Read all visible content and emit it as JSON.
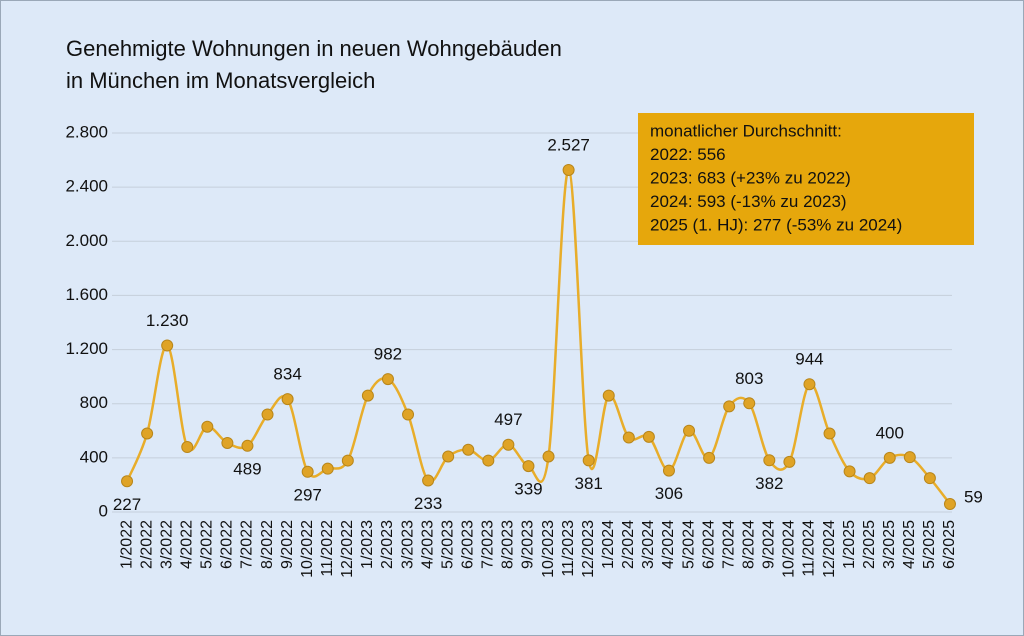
{
  "chart_data": {
    "type": "line",
    "title": [
      "Genehmigte Wohnungen in neuen Wohngebäuden",
      "in München im Monatsvergleich"
    ],
    "annotation": [
      "monatlicher Durchschnitt:",
      "2022: 556",
      "2023: 683 (+23% zu 2022)",
      "2024: 593 (-13% zu 2023)",
      "2025 (1. HJ): 277 (-53% zu 2024)"
    ],
    "categories": [
      "1/2022",
      "2/2022",
      "3/2022",
      "4/2022",
      "5/2022",
      "6/2022",
      "7/2022",
      "8/2022",
      "9/2022",
      "10/2022",
      "11/2022",
      "12/2022",
      "1/2023",
      "2/2023",
      "3/2023",
      "4/2023",
      "5/2023",
      "6/2023",
      "7/2023",
      "8/2023",
      "9/2023",
      "10/2023",
      "11/2023",
      "12/2023",
      "1/2024",
      "2/2024",
      "3/2024",
      "4/2024",
      "5/2024",
      "6/2024",
      "7/2024",
      "8/2024",
      "9/2024",
      "10/2024",
      "11/2024",
      "12/2024",
      "1/2025",
      "2/2025",
      "3/2025",
      "4/2025",
      "5/2025",
      "6/2025"
    ],
    "values": [
      227,
      580,
      1230,
      480,
      630,
      510,
      489,
      720,
      834,
      297,
      320,
      380,
      860,
      982,
      720,
      233,
      410,
      460,
      380,
      497,
      339,
      410,
      2527,
      381,
      860,
      550,
      555,
      306,
      600,
      400,
      780,
      803,
      382,
      370,
      944,
      580,
      300,
      250,
      400,
      405,
      250,
      59
    ],
    "value_labels": [
      "227",
      null,
      "1.230",
      null,
      null,
      null,
      "489",
      null,
      "834",
      "297",
      null,
      null,
      null,
      "982",
      null,
      "233",
      null,
      null,
      null,
      "497",
      "339",
      null,
      "2.527",
      "381",
      null,
      null,
      null,
      "306",
      null,
      null,
      null,
      "803",
      "382",
      null,
      "944",
      null,
      null,
      null,
      "400",
      null,
      null,
      "59"
    ],
    "color": "#e8ad2a",
    "marker_color": "#dfa326",
    "annotation_color": "#e6a70c",
    "ylim": [
      0,
      2800
    ],
    "yticks": [
      0,
      400,
      800,
      {
        "value": 1200,
        "label": "1.200"
      },
      {
        "value": 1600,
        "label": "1.600"
      },
      {
        "value": 2000,
        "label": "2.000"
      },
      {
        "value": 2400,
        "label": "2.400"
      },
      {
        "value": 2800,
        "label": "2.800"
      }
    ],
    "grid": true
  }
}
